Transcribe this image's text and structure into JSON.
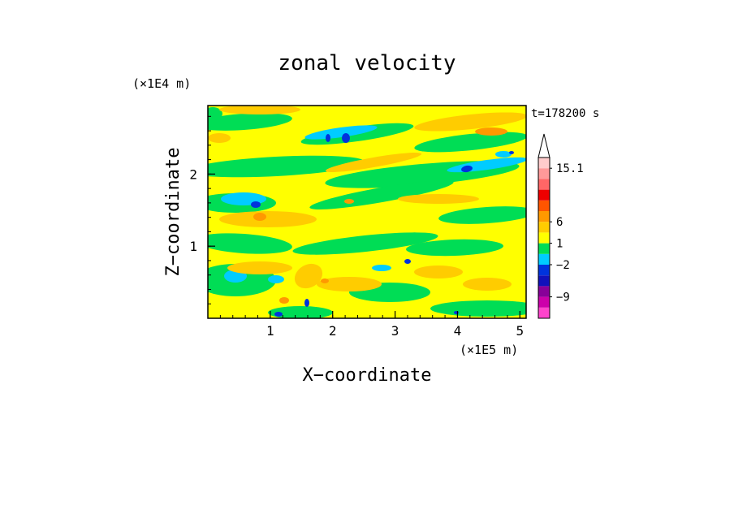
{
  "chart_data": {
    "type": "heatmap",
    "title": "zonal velocity",
    "xlabel": "X−coordinate",
    "ylabel": "Z−coordinate",
    "x_unit": "(×1E5 m)",
    "y_unit": "(×1E4 m)",
    "time_label": "t=178200 s",
    "xlim": [
      0.0,
      5.1
    ],
    "ylim": [
      0.0,
      2.95
    ],
    "x_ticks": [
      "1",
      "2",
      "3",
      "4",
      "5"
    ],
    "y_ticks": [
      "1",
      "2"
    ],
    "colorbar": {
      "labels": [
        "15.1",
        "6",
        "1",
        "−2",
        "−9"
      ],
      "colors": [
        "#ff44cc",
        "#cc00aa",
        "#880099",
        "#1111bb",
        "#0033dd",
        "#00ccff",
        "#00dd55",
        "#ffff00",
        "#ffcc00",
        "#ff9900",
        "#ff5500",
        "#ee0000",
        "#ff6666",
        "#ff9999",
        "#ffcccc"
      ],
      "extend_max": true
    },
    "field_colors": {
      "background": "#ffff00",
      "weak_positive": "#ffcc00",
      "moderate_positive": "#ff9900",
      "weak_negative": "#00dd55",
      "moderate_negative": "#00ccff",
      "strong_negative": "#0033dd"
    }
  }
}
